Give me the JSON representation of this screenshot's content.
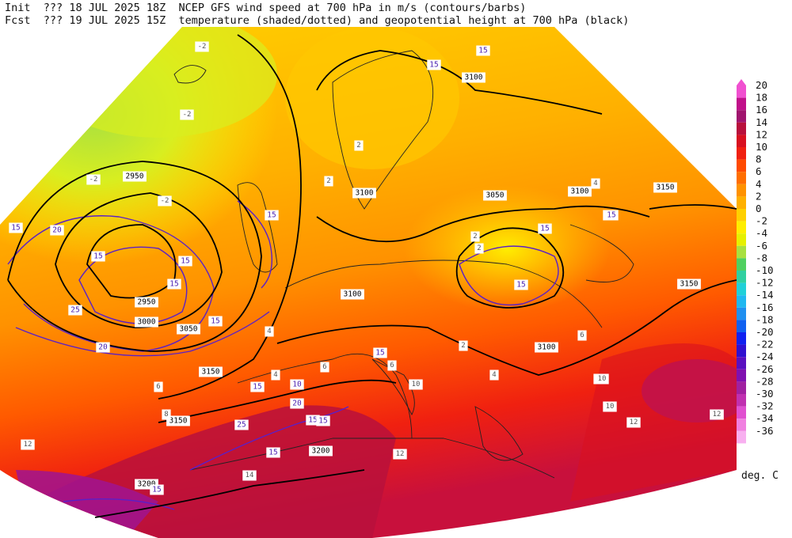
{
  "header": {
    "line1": {
      "label": "Init",
      "code": "???",
      "datetime": "18 JUL 2025 18Z",
      "title": "NCEP GFS wind speed at 700 hPa in m/s (contours/barbs)"
    },
    "line2": {
      "label": "Fcst",
      "code": "???",
      "datetime": "19 JUL 2025 15Z",
      "title": "temperature (shaded/dotted) and geopotential height at 700 hPa (black)"
    }
  },
  "colorbar": {
    "levels": [
      "20",
      "18",
      "16",
      "14",
      "12",
      "10",
      "8",
      "6",
      "4",
      "2",
      "0",
      "-2",
      "-4",
      "-6",
      "-8",
      "-10",
      "-12",
      "-14",
      "-16",
      "-18",
      "-20",
      "-22",
      "-24",
      "-26",
      "-28",
      "-30",
      "-32",
      "-34",
      "-36"
    ],
    "colors": [
      "#f050d0",
      "#c0108a",
      "#a0146e",
      "#b8103c",
      "#d81020",
      "#f02010",
      "#ff4a00",
      "#ff6e00",
      "#ff9200",
      "#ffb000",
      "#ffd000",
      "#ffee00",
      "#e6f000",
      "#a8e040",
      "#50d060",
      "#30d0a0",
      "#20d0d8",
      "#20b8f0",
      "#2090f0",
      "#1060f0",
      "#1020f0",
      "#3010d0",
      "#5a10c0",
      "#8010b0",
      "#a020a0",
      "#c030b0",
      "#e050d0",
      "#f080e0",
      "#f8b0f0"
    ],
    "units": "deg. C"
  },
  "map": {
    "background_colors": {
      "cold_low": "#c8f020",
      "cool": "#e8ee10",
      "mild": "#ffd200",
      "warm": "#ffb000",
      "hot": "#ff6e00",
      "very_hot": "#f02010",
      "extreme": "#b8103c"
    },
    "height_labels": [
      "2950",
      "2950",
      "3000",
      "3050",
      "3100",
      "3100",
      "3100",
      "3050",
      "3100",
      "3150",
      "3150",
      "3150",
      "3150",
      "3100",
      "3200",
      "3200"
    ],
    "wind_labels": [
      "15",
      "20",
      "15",
      "15",
      "15",
      "25",
      "20",
      "15",
      "15",
      "15",
      "15",
      "15",
      "15",
      "15",
      "20",
      "15",
      "25",
      "15",
      "10",
      "15",
      "15",
      "15",
      "15",
      "15"
    ],
    "temp_labels": [
      "-2",
      "-2",
      "-2",
      "2",
      "2",
      "2",
      "4",
      "4",
      "6",
      "2",
      "4",
      "6",
      "8",
      "10",
      "12",
      "12",
      "12",
      "14",
      "12",
      "10",
      "6",
      "4",
      "2",
      "-2",
      "6",
      "8",
      "10",
      "12"
    ]
  }
}
